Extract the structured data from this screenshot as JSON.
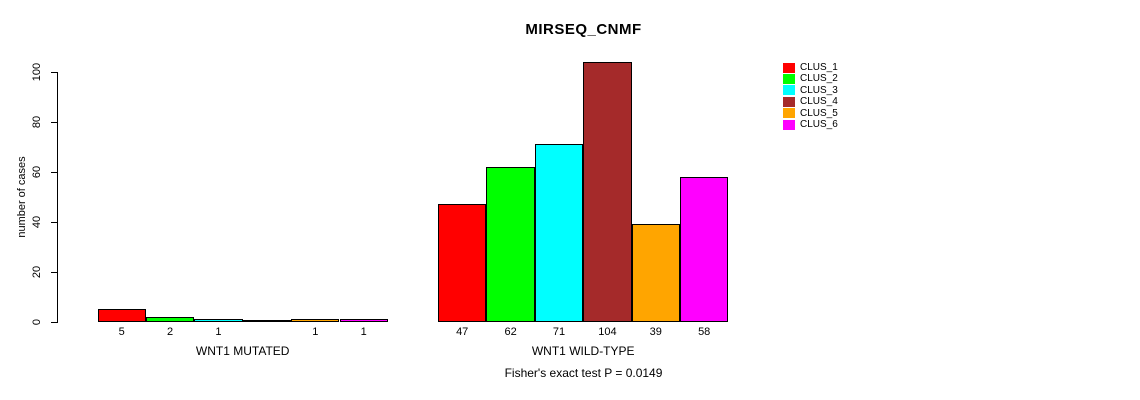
{
  "chart_data": {
    "type": "bar",
    "title": "MIRSEQ_CNMF",
    "ylabel": "number of cases",
    "xlabel": "",
    "footer": "Fisher's exact test P = 0.0149",
    "ylim": [
      0,
      100
    ],
    "yticks": [
      0,
      20,
      40,
      60,
      80,
      100
    ],
    "grid": false,
    "legend_position": "top-right",
    "groups": [
      "WNT1 MUTATED",
      "WNT1 WILD-TYPE"
    ],
    "series": [
      {
        "name": "CLUS_1",
        "color": "#ff0000",
        "values": [
          5,
          47
        ]
      },
      {
        "name": "CLUS_2",
        "color": "#00ff00",
        "values": [
          2,
          62
        ]
      },
      {
        "name": "CLUS_3",
        "color": "#00ffff",
        "values": [
          1,
          71
        ]
      },
      {
        "name": "CLUS_4",
        "color": "#a52a2a",
        "values": [
          0,
          104
        ]
      },
      {
        "name": "CLUS_5",
        "color": "#ffa500",
        "values": [
          1,
          39
        ]
      },
      {
        "name": "CLUS_6",
        "color": "#ff00ff",
        "values": [
          1,
          58
        ]
      }
    ],
    "bar_labels": [
      [
        "5",
        "2",
        "1",
        "",
        "1",
        "1"
      ],
      [
        "47",
        "62",
        "71",
        "104",
        "39",
        "58"
      ]
    ],
    "axis_color": "#000000",
    "background": "#ffffff"
  }
}
